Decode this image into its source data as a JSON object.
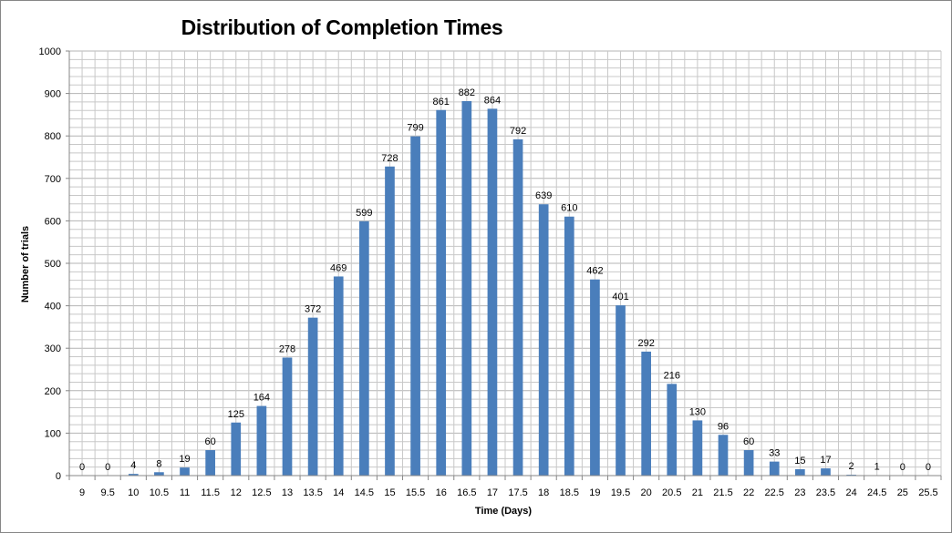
{
  "chart_data": {
    "type": "bar",
    "title": "Distribution of Completion Times",
    "xlabel": "Time (Days)",
    "ylabel": "Number of trials",
    "categories": [
      "9",
      "9.5",
      "10",
      "10.5",
      "11",
      "11.5",
      "12",
      "12.5",
      "13",
      "13.5",
      "14",
      "14.5",
      "15",
      "15.5",
      "16",
      "16.5",
      "17",
      "17.5",
      "18",
      "18.5",
      "19",
      "19.5",
      "20",
      "20.5",
      "21",
      "21.5",
      "22",
      "22.5",
      "23",
      "23.5",
      "24",
      "24.5",
      "25",
      "25.5"
    ],
    "values": [
      0,
      0,
      4,
      8,
      19,
      60,
      125,
      164,
      278,
      372,
      469,
      599,
      728,
      799,
      861,
      882,
      864,
      792,
      639,
      610,
      462,
      401,
      292,
      216,
      130,
      96,
      60,
      33,
      15,
      17,
      2,
      1,
      0,
      0
    ],
    "ylim": [
      0,
      1000
    ],
    "yticks": [
      "0",
      "100",
      "200",
      "300",
      "400",
      "500",
      "600",
      "700",
      "800",
      "900",
      "1000"
    ],
    "grid": true,
    "legend": "none",
    "colors": {
      "bar": "#4a7ebb",
      "grid": "#c8c8c8",
      "axis": "#878787"
    }
  }
}
